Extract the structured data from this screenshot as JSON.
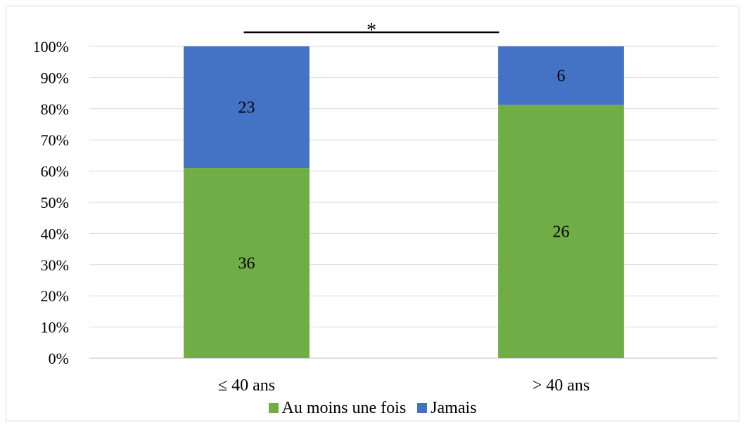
{
  "chart_data": {
    "type": "bar",
    "stacked": true,
    "normalized": true,
    "categories": [
      "≤ 40 ans",
      "> 40 ans"
    ],
    "series": [
      {
        "name": "Au moins une fois",
        "values": [
          36,
          26
        ],
        "color": "#70AD47"
      },
      {
        "name": "Jamais",
        "values": [
          23,
          6
        ],
        "color": "#4472C4"
      }
    ],
    "yticks": [
      "0%",
      "10%",
      "20%",
      "30%",
      "40%",
      "50%",
      "60%",
      "70%",
      "80%",
      "90%",
      "100%"
    ],
    "ylim": [
      0,
      100
    ],
    "grid": true,
    "legend_position": "bottom",
    "annotation": "*",
    "title": "",
    "xlabel": "",
    "ylabel": ""
  }
}
